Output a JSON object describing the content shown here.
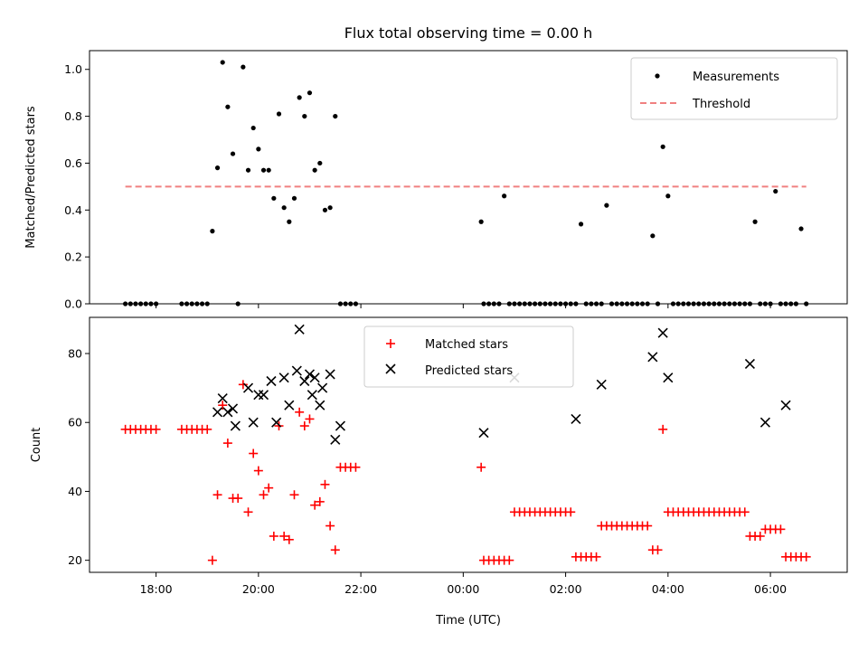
{
  "colors": {
    "measurement": "#000000",
    "threshold": "#f08080",
    "matched": "#ff0000",
    "predicted": "#000000"
  },
  "chart_data": [
    {
      "type": "scatter",
      "title": "Flux total observing time = 0.00 h",
      "xlabel": "",
      "ylabel": "Matched/Predicted stars",
      "ylim": [
        0,
        1.08
      ],
      "yticks": [
        "0.0",
        "0.2",
        "0.4",
        "0.6",
        "0.8",
        "1.0"
      ],
      "ytick_values": [
        0,
        0.2,
        0.4,
        0.6,
        0.8,
        1.0
      ],
      "legend": {
        "placement": "top-right",
        "entries": [
          "Measurements",
          "Threshold"
        ]
      },
      "threshold": {
        "name": "Threshold",
        "x": [
          17.4,
          30.7
        ],
        "y": 0.5
      },
      "series": [
        {
          "name": "Measurements",
          "x": [
            17.4,
            17.5,
            17.6,
            17.7,
            17.8,
            17.9,
            18.0,
            18.5,
            18.6,
            18.7,
            18.8,
            18.9,
            19.0,
            19.1,
            19.2,
            19.3,
            19.4,
            19.5,
            19.6,
            19.7,
            19.8,
            19.9,
            20.0,
            20.1,
            20.2,
            20.3,
            20.4,
            20.5,
            20.6,
            20.7,
            20.8,
            20.9,
            21.0,
            21.1,
            21.2,
            21.3,
            21.4,
            21.5,
            21.6,
            21.7,
            21.8,
            21.9,
            24.35,
            24.4,
            24.5,
            24.6,
            24.7,
            24.8,
            24.9,
            25.0,
            25.1,
            25.2,
            25.3,
            25.4,
            25.5,
            25.6,
            25.7,
            25.8,
            25.9,
            26.0,
            26.1,
            26.2,
            26.3,
            26.4,
            26.5,
            26.6,
            26.7,
            26.8,
            26.9,
            27.0,
            27.1,
            27.2,
            27.3,
            27.4,
            27.5,
            27.6,
            27.7,
            27.8,
            27.9,
            28.0,
            28.1,
            28.2,
            28.3,
            28.4,
            28.5,
            28.6,
            28.7,
            28.8,
            28.9,
            29.0,
            29.1,
            29.2,
            29.3,
            29.4,
            29.5,
            29.6,
            29.7,
            29.8,
            29.9,
            30.0,
            30.1,
            30.2,
            30.3,
            30.4,
            30.5,
            30.6,
            30.7
          ],
          "y": [
            0,
            0,
            0,
            0,
            0,
            0,
            0,
            0,
            0,
            0,
            0,
            0,
            0,
            0.31,
            0.58,
            1.03,
            0.84,
            0.64,
            0,
            1.01,
            0.57,
            0.75,
            0.66,
            0.57,
            0.57,
            0.45,
            0.81,
            0.41,
            0.35,
            0.45,
            0.88,
            0.8,
            0.9,
            0.57,
            0.6,
            0.4,
            0.41,
            0.8,
            0,
            0,
            0,
            0,
            0.35,
            0,
            0,
            0,
            0,
            0.46,
            0,
            0,
            0,
            0,
            0,
            0,
            0,
            0,
            0,
            0,
            0,
            0,
            0,
            0,
            0.34,
            0,
            0,
            0,
            0,
            0.42,
            0,
            0,
            0,
            0,
            0,
            0,
            0,
            0,
            0.29,
            0,
            0.67,
            0.46,
            0,
            0,
            0,
            0,
            0,
            0,
            0,
            0,
            0,
            0,
            0,
            0,
            0,
            0,
            0,
            0,
            0.35,
            0,
            0,
            0,
            0.48,
            0,
            0,
            0,
            0,
            0.32,
            0
          ]
        }
      ]
    },
    {
      "type": "scatter",
      "title": "",
      "xlabel": "Time (UTC)",
      "ylabel": "Count",
      "ylim": [
        16.5,
        90.5
      ],
      "yticks": [
        "20",
        "40",
        "60",
        "80"
      ],
      "ytick_values": [
        20,
        40,
        60,
        80
      ],
      "xlim": [
        16.7,
        31.5
      ],
      "xticks": [
        "18:00",
        "20:00",
        "22:00",
        "00:00",
        "02:00",
        "04:00",
        "06:00"
      ],
      "xtick_values": [
        18,
        20,
        22,
        24,
        26,
        28,
        30
      ],
      "legend": {
        "placement": "top-center",
        "entries": [
          "Matched stars",
          "Predicted stars"
        ]
      },
      "series": [
        {
          "name": "Matched stars",
          "x": [
            17.4,
            17.5,
            17.6,
            17.7,
            17.8,
            17.9,
            18.0,
            18.5,
            18.6,
            18.7,
            18.8,
            18.9,
            19.0,
            19.1,
            19.2,
            19.3,
            19.4,
            19.5,
            19.6,
            19.7,
            19.8,
            19.9,
            20.0,
            20.1,
            20.2,
            20.3,
            20.4,
            20.5,
            20.6,
            20.7,
            20.8,
            20.9,
            21.0,
            21.1,
            21.2,
            21.3,
            21.4,
            21.5,
            21.6,
            21.7,
            21.8,
            21.9,
            24.35,
            24.4,
            24.5,
            24.6,
            24.7,
            24.8,
            24.9,
            25.0,
            25.1,
            25.2,
            25.3,
            25.4,
            25.5,
            25.6,
            25.7,
            25.8,
            25.9,
            26.0,
            26.1,
            26.2,
            26.3,
            26.4,
            26.5,
            26.6,
            26.7,
            26.8,
            26.9,
            27.0,
            27.1,
            27.2,
            27.3,
            27.4,
            27.5,
            27.6,
            27.7,
            27.8,
            27.9,
            28.0,
            28.1,
            28.2,
            28.3,
            28.4,
            28.5,
            28.6,
            28.7,
            28.8,
            28.9,
            29.0,
            29.1,
            29.2,
            29.3,
            29.4,
            29.5,
            29.6,
            29.7,
            29.8,
            29.9,
            30.0,
            30.1,
            30.2,
            30.3,
            30.4,
            30.5,
            30.6,
            30.7
          ],
          "y": [
            58,
            58,
            58,
            58,
            58,
            58,
            58,
            58,
            58,
            58,
            58,
            58,
            58,
            20,
            39,
            65,
            54,
            38,
            38,
            71,
            34,
            51,
            46,
            39,
            41,
            27,
            59,
            27,
            26,
            39,
            63,
            59,
            61,
            36,
            37,
            42,
            30,
            23,
            47,
            47,
            47,
            47,
            47,
            20,
            20,
            20,
            20,
            20,
            20,
            34,
            34,
            34,
            34,
            34,
            34,
            34,
            34,
            34,
            34,
            34,
            34,
            21,
            21,
            21,
            21,
            21,
            30,
            30,
            30,
            30,
            30,
            30,
            30,
            30,
            30,
            30,
            23,
            23,
            58,
            34,
            34,
            34,
            34,
            34,
            34,
            34,
            34,
            34,
            34,
            34,
            34,
            34,
            34,
            34,
            34,
            27,
            27,
            27,
            29,
            29,
            29,
            29,
            21,
            21,
            21,
            21,
            21
          ]
        },
        {
          "name": "Predicted stars",
          "x": [
            19.2,
            19.3,
            19.4,
            19.5,
            19.55,
            19.8,
            19.9,
            20.0,
            20.1,
            20.25,
            20.35,
            20.5,
            20.6,
            20.75,
            20.8,
            20.9,
            21.0,
            21.05,
            21.1,
            21.2,
            21.25,
            21.4,
            21.5,
            21.6,
            24.4,
            25.0,
            26.2,
            26.7,
            27.7,
            27.9,
            28.0,
            29.6,
            29.9,
            30.3
          ],
          "y": [
            63,
            67,
            63,
            64,
            59,
            70,
            60,
            68,
            68,
            72,
            60,
            73,
            65,
            75,
            87,
            72,
            74,
            68,
            73,
            65,
            70,
            74,
            55,
            59,
            57,
            73,
            61,
            71,
            79,
            86,
            73,
            77,
            60,
            65
          ]
        }
      ]
    }
  ]
}
